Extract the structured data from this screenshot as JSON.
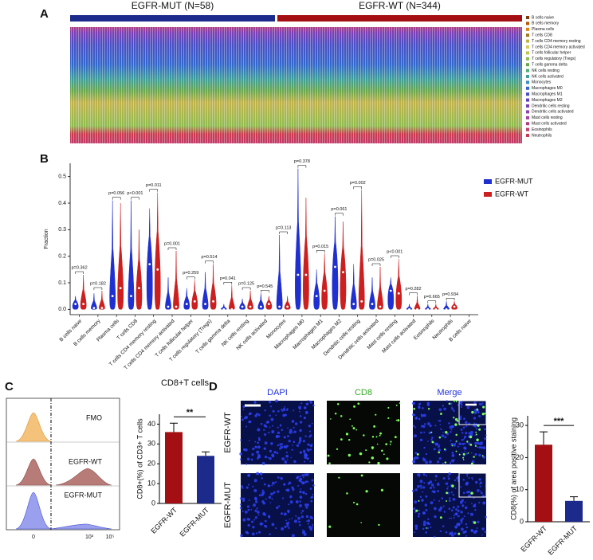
{
  "panel_labels": [
    "A",
    "B",
    "C",
    "D"
  ],
  "chart_data": [
    {
      "type": "composition",
      "group_labels": [
        "EGFR-MUT (N=58)",
        "EGFR-WT (N=344)"
      ],
      "group_colors": [
        "#1c2a8c",
        "#a30f12"
      ],
      "legend": [
        "B cells naive",
        "B cells memory",
        "Plasma cells",
        "T cells CD8",
        "T cells CD4 memory resting",
        "T cells CD4 memory activated",
        "T cells follicular helper",
        "T cells regulatory (Tregs)",
        "T cells gamma delta",
        "NK cells resting",
        "NK cells activated",
        "Monocytes",
        "Macrophages M0",
        "Macrophages M1",
        "Macrophages M2",
        "Dendritic cells resting",
        "Dendritic cells activated",
        "Mast cells resting",
        "Mast cells activated",
        "Eosinophils",
        "Neutrophils"
      ],
      "colors": [
        "#7f3b08",
        "#b35806",
        "#e08214",
        "#a6761d",
        "#c2b24b",
        "#d8c95a",
        "#b8c94e",
        "#8fbc4f",
        "#6aa84f",
        "#4caf73",
        "#3f9f9a",
        "#3c8dbc",
        "#3366cc",
        "#4a4fc4",
        "#5e3fbf",
        "#7b3fb5",
        "#8e44ad",
        "#a0419c",
        "#b03f85",
        "#c03b6b",
        "#cc3a4f"
      ]
    },
    {
      "type": "violin",
      "y_label": "Fraction",
      "categories": [
        "B cells naive",
        "B cells memory",
        "Plasma cells",
        "T cells CD8",
        "T cells CD4 memory resting",
        "T cells CD4 memory activated",
        "T cells follicular helper",
        "T cells regulatory (Tregs)",
        "T cells gamma delta",
        "NK cells resting",
        "NK cells activated",
        "Monocytes",
        "Macrophages M0",
        "Macrophages M1",
        "Macrophages M2",
        "Dendritic cells resting",
        "Dendritic cells activated",
        "Mast cells resting",
        "Mast cells activated",
        "Eosinophils",
        "Neutrophils",
        "B cells naive"
      ],
      "annotations": [
        "p=0.362",
        "p=0.182",
        "p=0.056",
        "p<0.001",
        "p=0.011",
        "p=0.001",
        "p=0.259",
        "p=0.514",
        "p=0.041",
        "p=0.125",
        "p=0.545",
        "p=0.113",
        "p=0.378",
        "p=0.015",
        "p=0.061",
        "p=0.002",
        "p=0.025",
        "p<0.001",
        "p=0.282",
        "p=0.665",
        "p=0.934",
        null
      ],
      "series": [
        {
          "name": "EGFR-MUT",
          "color": "#1f2fd0",
          "values": [
            0.02,
            0.005,
            0.05,
            0.05,
            0.17,
            0.01,
            0.02,
            0.02,
            0.0,
            0.01,
            0.01,
            0.01,
            0.13,
            0.05,
            0.16,
            0.02,
            0.02,
            0.07,
            0.0,
            0.0,
            0.0,
            null
          ],
          "upper": [
            0.05,
            0.06,
            0.41,
            0.41,
            0.38,
            0.12,
            0.08,
            0.14,
            0.02,
            0.04,
            0.06,
            0.28,
            0.53,
            0.15,
            0.35,
            0.17,
            0.12,
            0.12,
            0.02,
            0.02,
            0.03,
            null
          ]
        },
        {
          "name": "EGFR-WT",
          "color": "#cc1f1f",
          "values": [
            0.02,
            0.005,
            0.08,
            0.08,
            0.15,
            0.01,
            0.03,
            0.03,
            0.0,
            0.01,
            0.02,
            0.01,
            0.13,
            0.07,
            0.14,
            0.03,
            0.01,
            0.06,
            0.0,
            0.0,
            0.01,
            null
          ],
          "upper": [
            0.13,
            0.07,
            0.4,
            0.3,
            0.44,
            0.22,
            0.11,
            0.17,
            0.09,
            0.07,
            0.05,
            0.05,
            0.42,
            0.21,
            0.33,
            0.45,
            0.16,
            0.19,
            0.05,
            0.02,
            0.03,
            null
          ]
        }
      ],
      "ylim": [
        -0.02,
        0.55
      ],
      "yticks": [
        {
          "value": 0,
          "label": "0.0"
        },
        0.1,
        0.2,
        0.3,
        0.4,
        0.5
      ]
    },
    {
      "type": "bar",
      "title": "CD8+T cells",
      "y_label": "CD8+(%) of CD3+ T cells",
      "categories": [
        "EGFR-WT",
        "EGFR-MUT"
      ],
      "values": [
        36,
        24
      ],
      "errors": [
        4.5,
        2
      ],
      "colors": [
        "#a30f12",
        "#1c2a8c"
      ],
      "significance": "**",
      "ylim": [
        0,
        45
      ],
      "yticks": [
        0,
        10,
        20,
        30,
        40
      ]
    },
    {
      "type": "bar",
      "y_label": "CD8(%) of area positive staining",
      "categories": [
        "EGFR-WT",
        "EGFR-MUT"
      ],
      "values": [
        24,
        6.5
      ],
      "errors": [
        4,
        1.3
      ],
      "colors": [
        "#a30f12",
        "#1c2a8c"
      ],
      "significance": "***",
      "ylim": [
        0,
        33
      ],
      "yticks": [
        0,
        10,
        20,
        30
      ]
    }
  ],
  "flow": {
    "labels": [
      "FMO",
      "EGFR-WT",
      "EGFR-MUT"
    ],
    "xticks": [
      "0",
      "10³",
      "10⁵"
    ]
  },
  "imaging": {
    "columns": [
      "DAPI",
      "CD8",
      "Merge"
    ],
    "rows": [
      "EGFR-WT",
      "EGFR-MUT"
    ]
  }
}
